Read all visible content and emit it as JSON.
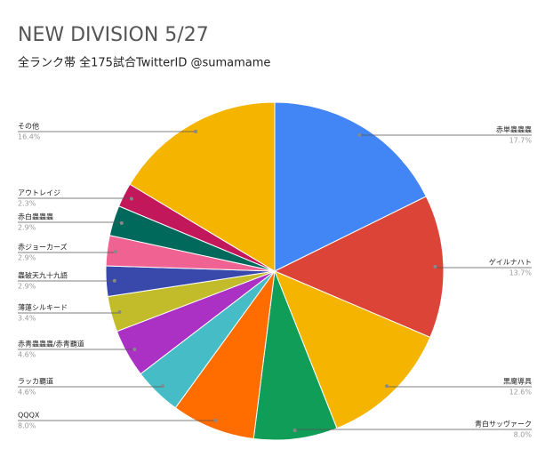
{
  "chart_data": {
    "type": "pie",
    "title": "NEW DIVISION 5/27",
    "subtitle": "全ランク帯 全175試合TwitterID @sumamame",
    "categories": [
      "赤単蟲蟲蟲",
      "ゲイルナハト",
      "黒魔導具",
      "青白サッヴァーク",
      "QQQX",
      "ラッカ覇道",
      "赤青蟲蟲蟲/赤青覇道",
      "薄蓮シルキード",
      "蟲破天九十九語",
      "赤ジョーカーズ",
      "赤白蟲蟲蟲",
      "アウトレイジ",
      "その他"
    ],
    "values": [
      17.7,
      13.7,
      12.6,
      8.0,
      8.0,
      4.6,
      4.6,
      3.4,
      2.9,
      2.9,
      2.9,
      2.3,
      16.4
    ],
    "value_labels": [
      "17.7%",
      "13.7%",
      "12.6%",
      "8.0%",
      "8.0%",
      "4.6%",
      "4.6%",
      "3.4%",
      "2.9%",
      "2.9%",
      "2.9%",
      "2.3%",
      "16.4%"
    ],
    "colors": [
      "#4285f4",
      "#db4437",
      "#f4b400",
      "#0f9d58",
      "#ff6d00",
      "#46bdc6",
      "#ab30c4",
      "#c2bc2a",
      "#3949ab",
      "#f06292",
      "#00695c",
      "#c2185b",
      "#f4b400"
    ]
  }
}
